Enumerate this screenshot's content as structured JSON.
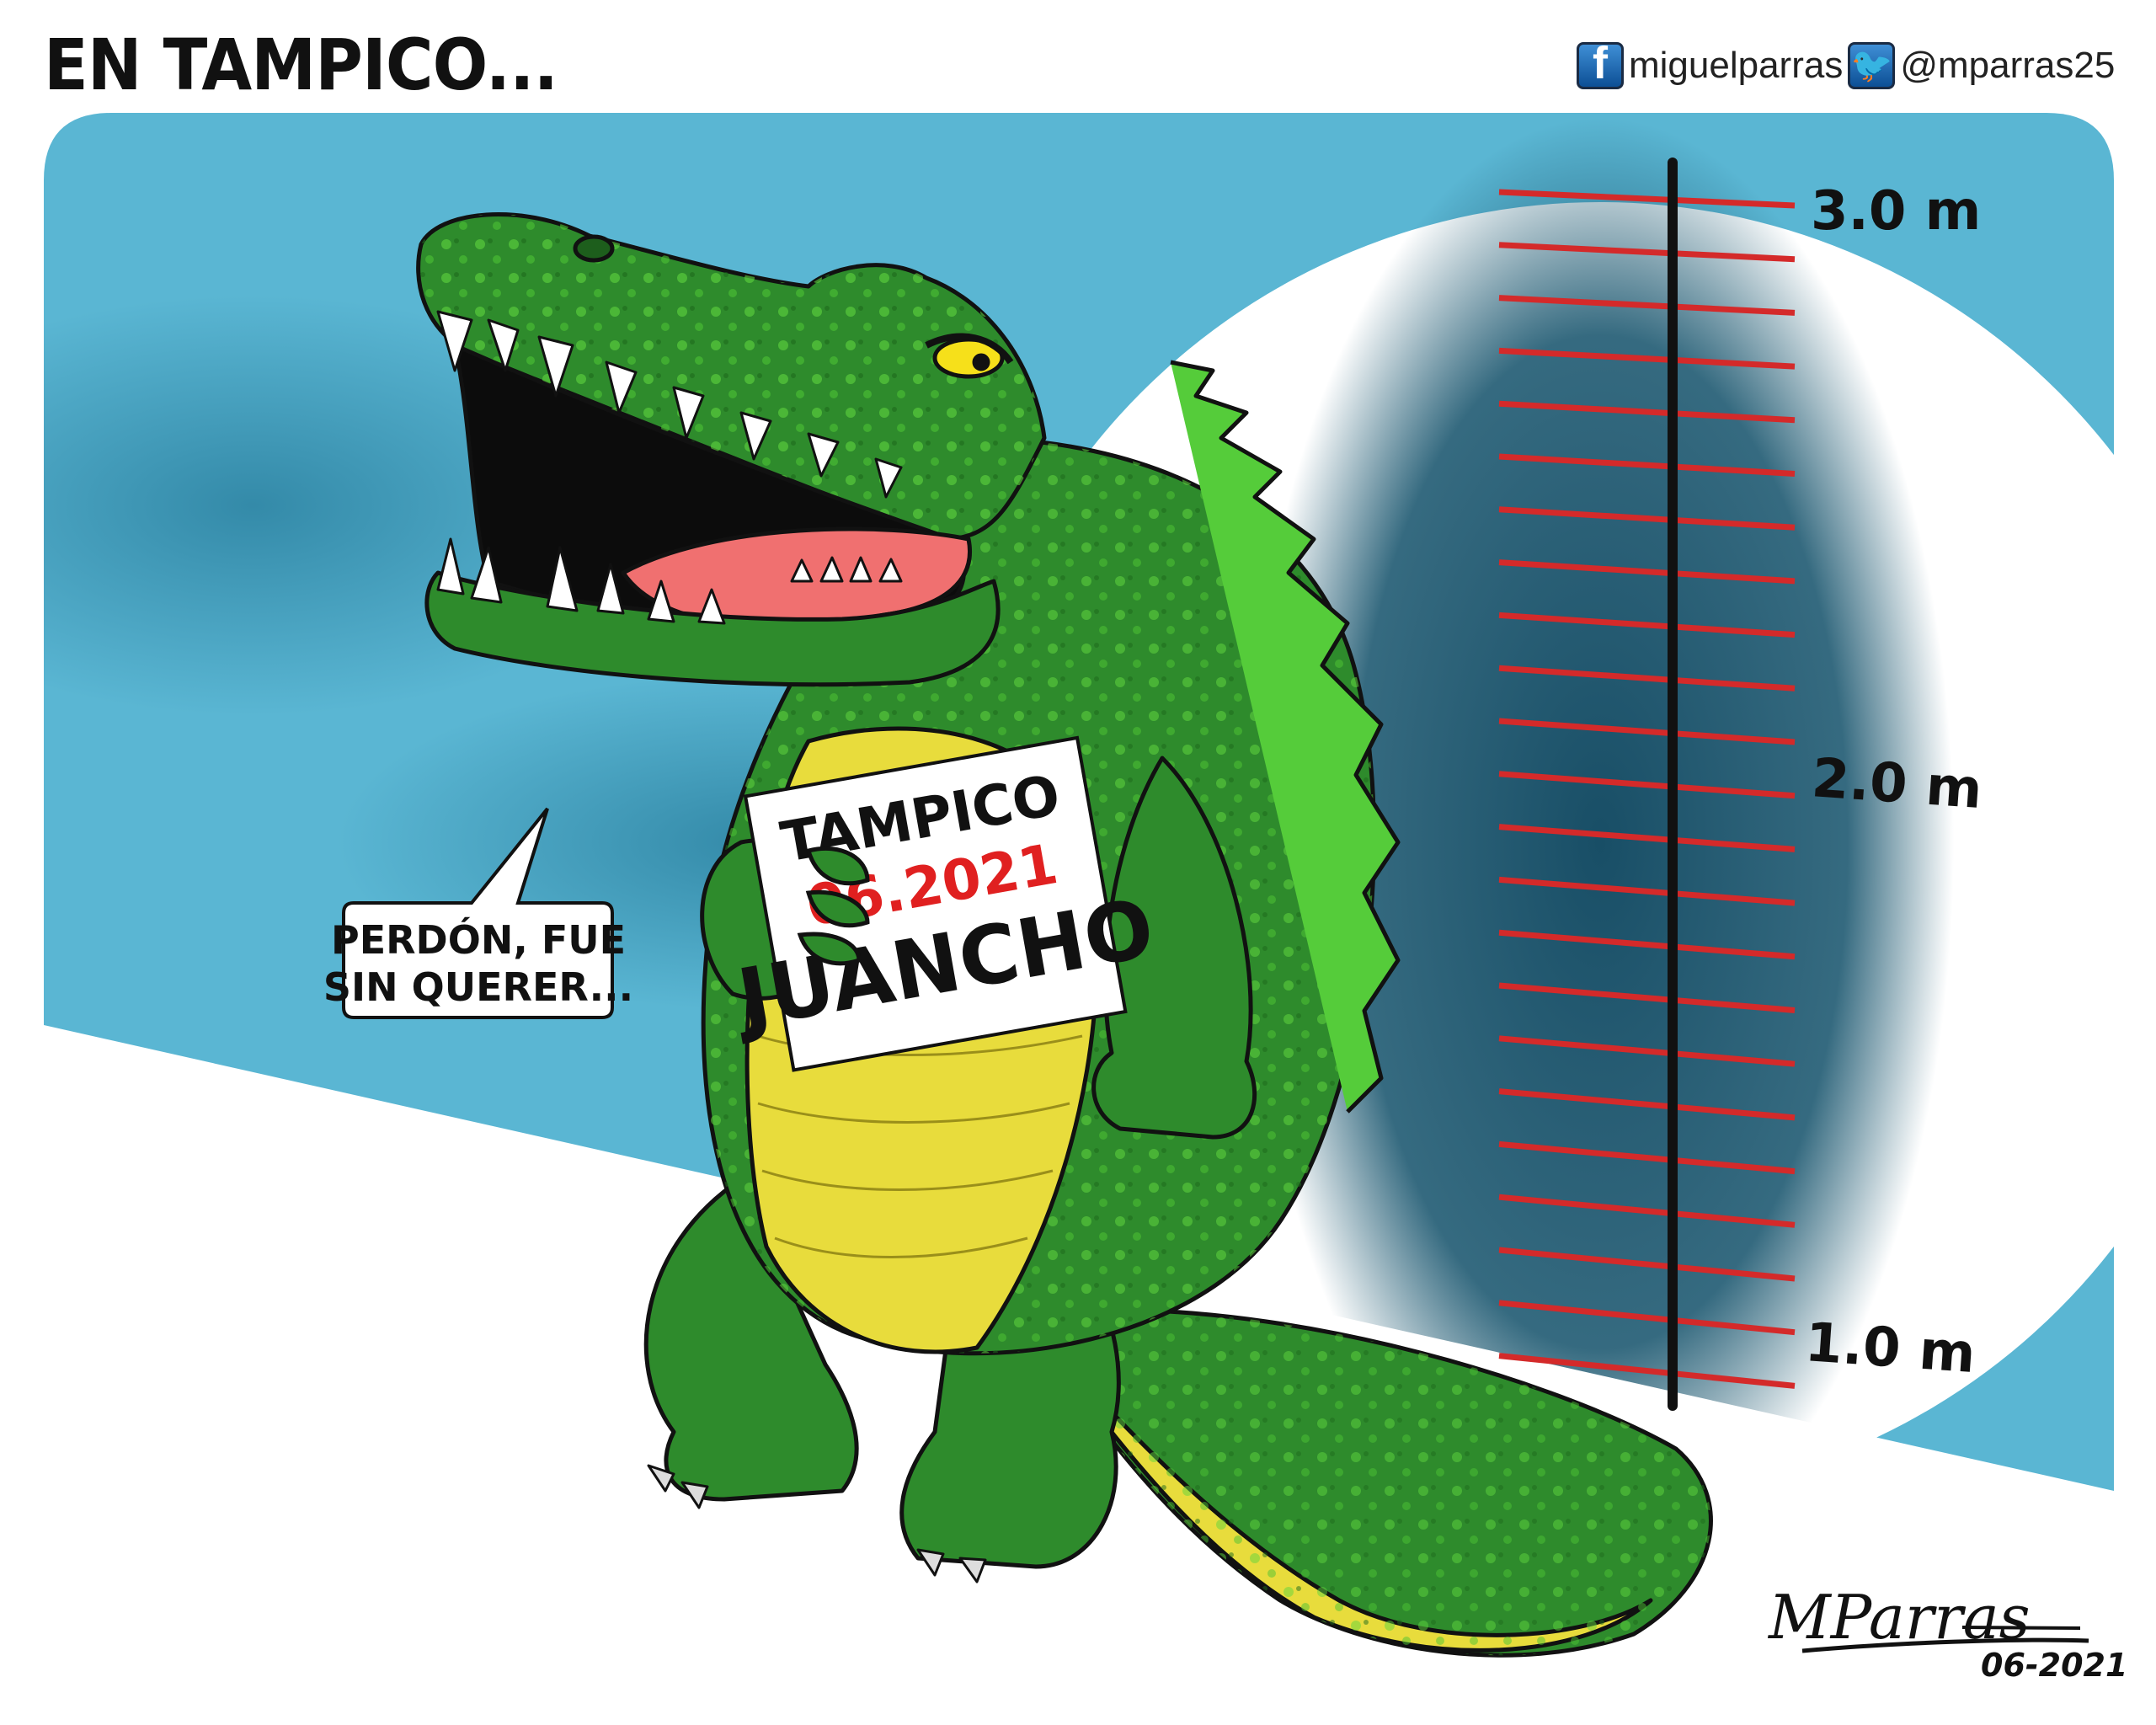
{
  "header": {
    "title": "EN TAMPICO...",
    "facebook_handle": "miguelparras",
    "twitter_handle": "@mparras25",
    "facebook_icon": "facebook-icon",
    "twitter_icon": "twitter-icon"
  },
  "ruler": {
    "labels": [
      "3.0 m",
      "2.0 m",
      "1.0 m"
    ],
    "tick_color": "#d42a2a"
  },
  "speech_bubble": {
    "line1": "PERDÓN, FUE",
    "line2": "SIN QUERER..."
  },
  "sign": {
    "line1": "TAMPICO",
    "line2": "06.2021",
    "line3": "JUANCHO",
    "accent": "#e02020"
  },
  "signature": {
    "name": "MParras",
    "date": "06-2021"
  },
  "colors": {
    "sky": "#5ab6d3",
    "cloud": "#1f5a72",
    "croc_green": "#2e8b2c",
    "croc_spots": "#55cc3a",
    "belly": "#e8dc3c"
  }
}
